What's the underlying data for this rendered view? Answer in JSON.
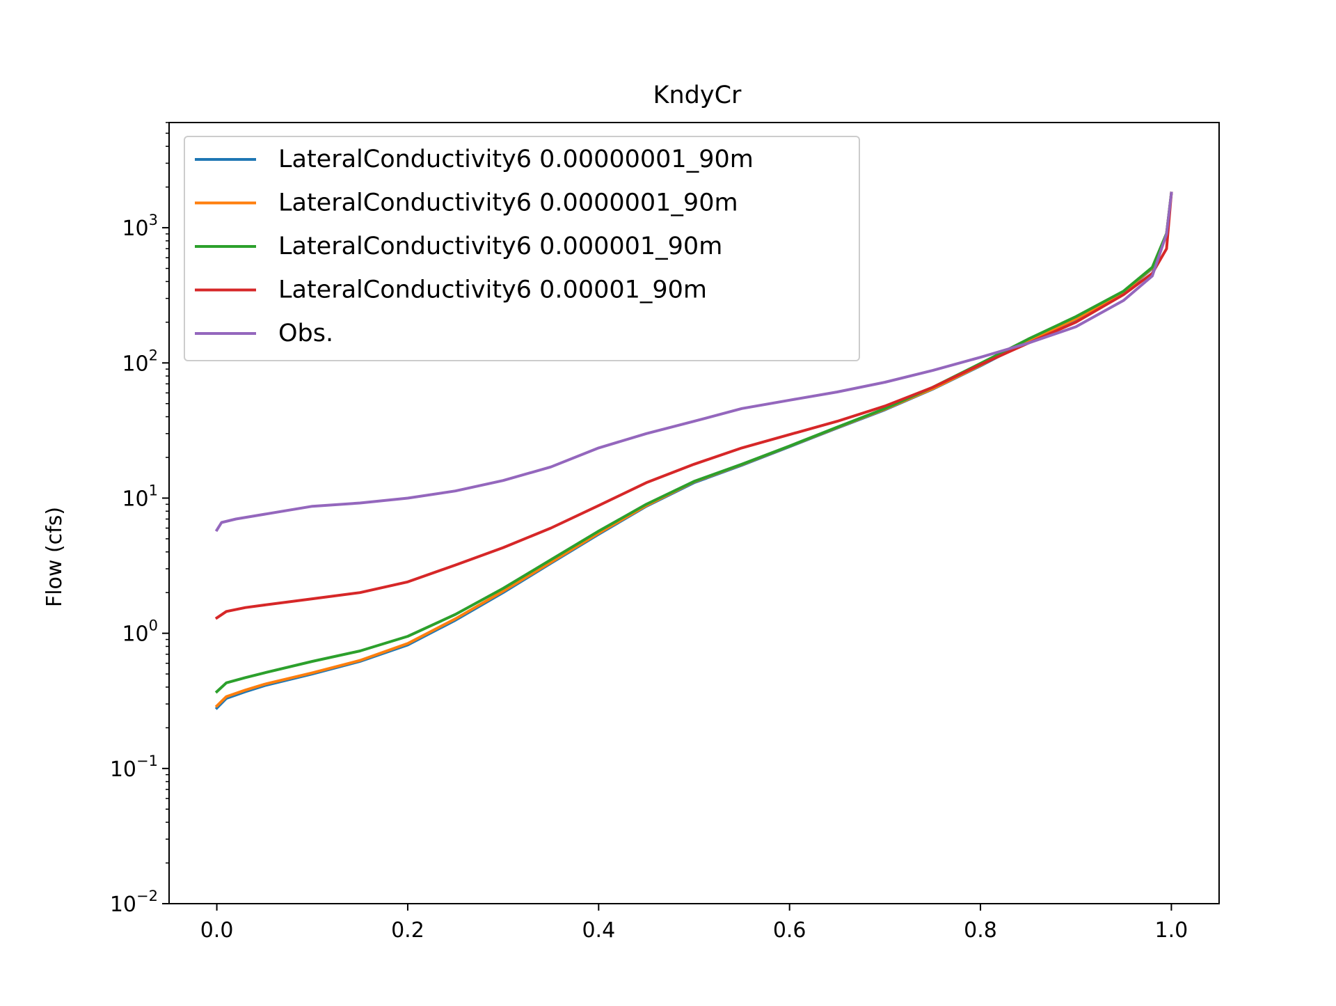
{
  "chart_data": {
    "type": "line",
    "title": "KndyCr",
    "xlabel": "",
    "ylabel": "Flow (cfs)",
    "xlim": [
      -0.05,
      1.05
    ],
    "ylim": [
      0.01,
      6000
    ],
    "yscale": "log",
    "grid": false,
    "legend_position": "top-left",
    "x_ticks": [
      {
        "value": 0.0,
        "label": "0.0"
      },
      {
        "value": 0.2,
        "label": "0.2"
      },
      {
        "value": 0.4,
        "label": "0.4"
      },
      {
        "value": 0.6,
        "label": "0.6"
      },
      {
        "value": 0.8,
        "label": "0.8"
      },
      {
        "value": 1.0,
        "label": "1.0"
      }
    ],
    "y_ticks": [
      {
        "value": 0.01,
        "base": "10",
        "exp": "−2"
      },
      {
        "value": 0.1,
        "base": "10",
        "exp": "−1"
      },
      {
        "value": 1,
        "base": "10",
        "exp": "0"
      },
      {
        "value": 10,
        "base": "10",
        "exp": "1"
      },
      {
        "value": 100,
        "base": "10",
        "exp": "2"
      },
      {
        "value": 1000,
        "base": "10",
        "exp": "3"
      }
    ],
    "series": [
      {
        "name": "LateralConductivity6 0.00000001_90m",
        "color": "#1f77b4",
        "x": [
          0,
          0.01,
          0.03,
          0.05,
          0.1,
          0.15,
          0.2,
          0.25,
          0.3,
          0.35,
          0.4,
          0.45,
          0.5,
          0.55,
          0.6,
          0.65,
          0.7,
          0.75,
          0.8,
          0.85,
          0.9,
          0.95,
          0.98,
          0.995,
          1.0
        ],
        "y": [
          0.28,
          0.33,
          0.37,
          0.41,
          0.5,
          0.62,
          0.82,
          1.25,
          2.0,
          3.3,
          5.4,
          8.7,
          13,
          17.5,
          24,
          33,
          45,
          64,
          95,
          145,
          210,
          330,
          500,
          900,
          1800
        ]
      },
      {
        "name": "LateralConductivity6 0.0000001_90m",
        "color": "#ff7f0e",
        "x": [
          0,
          0.01,
          0.03,
          0.05,
          0.1,
          0.15,
          0.2,
          0.25,
          0.3,
          0.35,
          0.4,
          0.45,
          0.5,
          0.55,
          0.6,
          0.65,
          0.7,
          0.75,
          0.8,
          0.85,
          0.9,
          0.95,
          0.98,
          0.995,
          1.0
        ],
        "y": [
          0.29,
          0.34,
          0.38,
          0.42,
          0.51,
          0.63,
          0.84,
          1.28,
          2.05,
          3.35,
          5.5,
          8.8,
          13.2,
          17.7,
          24.2,
          33.3,
          45.5,
          64.5,
          96,
          146,
          212,
          332,
          505,
          905,
          1800
        ]
      },
      {
        "name": "LateralConductivity6 0.000001_90m",
        "color": "#2ca02c",
        "x": [
          0,
          0.01,
          0.03,
          0.05,
          0.1,
          0.15,
          0.2,
          0.25,
          0.3,
          0.35,
          0.4,
          0.45,
          0.5,
          0.55,
          0.6,
          0.65,
          0.7,
          0.75,
          0.8,
          0.85,
          0.9,
          0.95,
          0.98,
          0.995,
          1.0
        ],
        "y": [
          0.37,
          0.43,
          0.47,
          0.51,
          0.62,
          0.74,
          0.95,
          1.38,
          2.15,
          3.5,
          5.7,
          9.0,
          13.3,
          17.8,
          24.3,
          33.5,
          46,
          66,
          99,
          150,
          220,
          340,
          510,
          910,
          1800
        ]
      },
      {
        "name": "LateralConductivity6 0.00001_90m",
        "color": "#d62728",
        "x": [
          0,
          0.01,
          0.03,
          0.05,
          0.1,
          0.15,
          0.2,
          0.25,
          0.3,
          0.35,
          0.4,
          0.45,
          0.5,
          0.55,
          0.6,
          0.65,
          0.7,
          0.75,
          0.8,
          0.85,
          0.9,
          0.95,
          0.98,
          0.995,
          1.0
        ],
        "y": [
          1.3,
          1.45,
          1.55,
          1.62,
          1.8,
          2.0,
          2.4,
          3.2,
          4.3,
          6.0,
          8.8,
          13.0,
          17.8,
          23.5,
          29.5,
          37,
          48,
          66,
          97,
          140,
          200,
          320,
          460,
          700,
          1800
        ]
      },
      {
        "name": "Obs.",
        "color": "#9467bd",
        "x": [
          0,
          0.005,
          0.02,
          0.05,
          0.1,
          0.15,
          0.2,
          0.25,
          0.3,
          0.35,
          0.4,
          0.45,
          0.5,
          0.55,
          0.6,
          0.65,
          0.7,
          0.75,
          0.8,
          0.85,
          0.9,
          0.95,
          0.98,
          0.995,
          1.0
        ],
        "y": [
          5.8,
          6.6,
          7.0,
          7.6,
          8.7,
          9.2,
          10.0,
          11.3,
          13.5,
          17.0,
          23.5,
          30,
          37,
          46,
          53,
          61,
          72,
          88,
          110,
          140,
          185,
          290,
          440,
          900,
          1800
        ]
      }
    ]
  }
}
